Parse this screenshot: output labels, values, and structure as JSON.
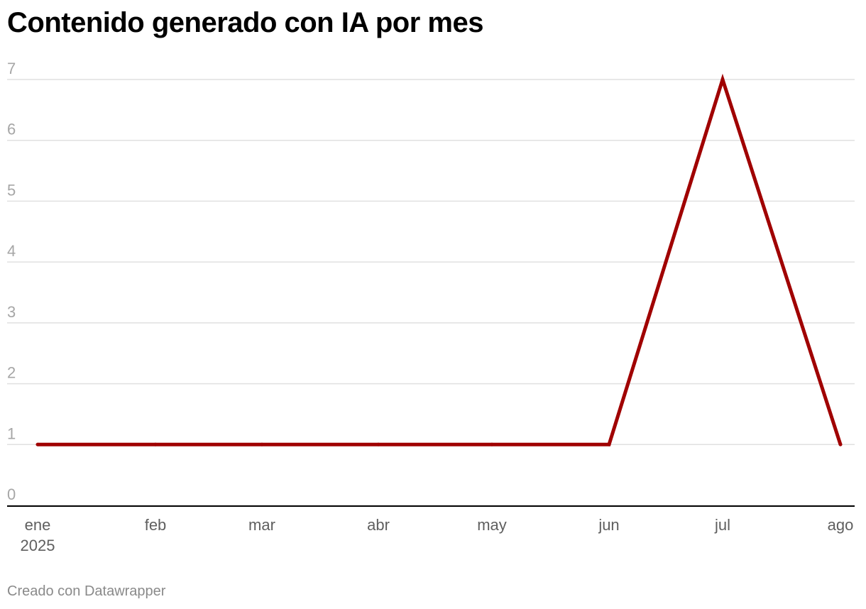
{
  "title": "Contenido generado con IA por mes",
  "credit": "Creado con Datawrapper",
  "colors": {
    "line": "#a00000",
    "grid": "#e0e0e0",
    "axis": "#000000"
  },
  "chart_data": {
    "type": "line",
    "title": "Contenido generado con IA por mes",
    "categories": [
      "ene",
      "feb",
      "mar",
      "abr",
      "may",
      "jun",
      "jul",
      "ago"
    ],
    "x_sublabel": "2025",
    "series": [
      {
        "values": [
          1,
          1,
          1,
          1,
          1,
          1,
          7,
          1
        ]
      }
    ],
    "x": [
      "2025-01",
      "2025-02",
      "2025-03",
      "2025-04",
      "2025-05",
      "2025-06",
      "2025-07",
      "2025-08"
    ],
    "yticks": [
      "0",
      "1",
      "2",
      "3",
      "4",
      "5",
      "6",
      "7"
    ],
    "ylim": [
      0,
      7
    ],
    "grid": true,
    "legend": "none"
  }
}
